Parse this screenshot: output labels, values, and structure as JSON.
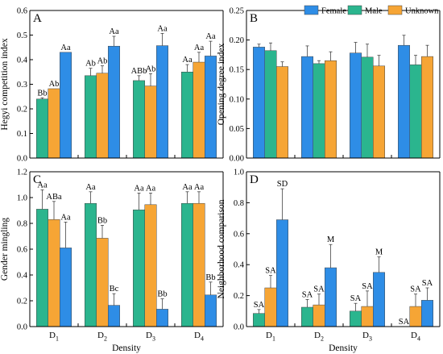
{
  "colors": {
    "Female": "#2e8de6",
    "Male": "#2bb58e",
    "Unknown": "#f6a535"
  },
  "legend": {
    "items": [
      "Female",
      "Male",
      "Unknown"
    ],
    "placement": "top-right"
  },
  "xlabel_shared": "Density",
  "chart_data": [
    {
      "panel": "A",
      "type": "bar",
      "ylabel": "Hegyi competition index",
      "ylim": [
        0.0,
        0.6
      ],
      "yticks": [
        "0.0",
        "0.1",
        "0.2",
        "0.3",
        "0.4",
        "0.5",
        "0.6"
      ],
      "categories": [
        "D1",
        "D2",
        "D3",
        "D4"
      ],
      "xtick_labels": [],
      "series": [
        {
          "name": "Male",
          "values": [
            0.24,
            0.335,
            0.315,
            0.35
          ],
          "errors": [
            0.005,
            0.03,
            0.02,
            0.03
          ],
          "labels": [
            "Bb",
            "Ab",
            "ABb",
            "Aa"
          ]
        },
        {
          "name": "Unknown",
          "values": [
            0.282,
            0.345,
            0.293,
            0.39
          ],
          "errors": [
            0.0,
            0.03,
            0.05,
            0.04
          ],
          "labels": [
            "Ab",
            "Ab",
            "Ab",
            "Aa"
          ]
        },
        {
          "name": "Female",
          "values": [
            0.43,
            0.455,
            0.457,
            0.415
          ],
          "errors": [
            0.0,
            0.04,
            0.05,
            0.06
          ],
          "labels": [
            "Aa",
            "Aa",
            "Aa",
            "Aa"
          ]
        }
      ]
    },
    {
      "panel": "B",
      "type": "bar",
      "ylabel": "Opening degree index",
      "ylim": [
        0.0,
        0.25
      ],
      "yticks": [
        "0.00",
        "0.05",
        "0.10",
        "0.15",
        "0.20",
        "0.25"
      ],
      "categories": [
        "D1",
        "D2",
        "D3",
        "D4"
      ],
      "xtick_labels": [],
      "series": [
        {
          "name": "Female",
          "values": [
            0.188,
            0.172,
            0.178,
            0.191
          ],
          "errors": [
            0.005,
            0.018,
            0.018,
            0.017
          ],
          "labels": [
            "",
            "",
            "",
            ""
          ]
        },
        {
          "name": "Male",
          "values": [
            0.182,
            0.16,
            0.171,
            0.158
          ],
          "errors": [
            0.013,
            0.005,
            0.022,
            0.016
          ],
          "labels": [
            "",
            "",
            "",
            ""
          ]
        },
        {
          "name": "Unknown",
          "values": [
            0.155,
            0.165,
            0.156,
            0.172
          ],
          "errors": [
            0.008,
            0.015,
            0.018,
            0.019
          ],
          "labels": [
            "",
            "",
            "",
            ""
          ]
        }
      ]
    },
    {
      "panel": "C",
      "type": "bar",
      "ylabel": "Gender mingling",
      "ylim": [
        0.0,
        1.2
      ],
      "yticks": [
        "0.0",
        "0.2",
        "0.4",
        "0.6",
        "0.8",
        "1.0",
        "1.2"
      ],
      "categories": [
        "D1",
        "D2",
        "D3",
        "D4"
      ],
      "xtick_labels": [
        "D1",
        "D2",
        "D3",
        "D4"
      ],
      "series": [
        {
          "name": "Male",
          "values": [
            0.91,
            0.955,
            0.905,
            0.955
          ],
          "errors": [
            0.15,
            0.09,
            0.13,
            0.09
          ],
          "labels": [
            "Aa",
            "Aa",
            "Aa",
            "Aa"
          ]
        },
        {
          "name": "Unknown",
          "values": [
            0.83,
            0.685,
            0.945,
            0.955
          ],
          "errors": [
            0.14,
            0.1,
            0.09,
            0.09
          ],
          "labels": [
            "ABa",
            "Bb",
            "Aa",
            "Aa"
          ]
        },
        {
          "name": "Female",
          "values": [
            0.61,
            0.165,
            0.135,
            0.245
          ],
          "errors": [
            0.2,
            0.09,
            0.08,
            0.1
          ],
          "labels": [
            "Aa",
            "Bc",
            "Bb",
            "Bb"
          ]
        }
      ]
    },
    {
      "panel": "D",
      "type": "bar",
      "ylabel": "Neighborhood comparison",
      "ylim": [
        0.0,
        1.0
      ],
      "yticks": [
        "0.0",
        "0.2",
        "0.4",
        "0.6",
        "0.8",
        "1.0"
      ],
      "categories": [
        "D1",
        "D2",
        "D3",
        "D4"
      ],
      "xtick_labels": [
        "D1",
        "D2",
        "D3",
        "D4"
      ],
      "series": [
        {
          "name": "Male",
          "values": [
            0.085,
            0.125,
            0.1,
            0.0
          ],
          "errors": [
            0.025,
            0.05,
            0.05,
            0.0
          ],
          "labels": [
            "SA",
            "SA",
            "SA",
            "SA"
          ]
        },
        {
          "name": "Unknown",
          "values": [
            0.25,
            0.14,
            0.13,
            0.13
          ],
          "errors": [
            0.08,
            0.07,
            0.1,
            0.08
          ],
          "labels": [
            "SA",
            "SA",
            "SA",
            "SA"
          ]
        },
        {
          "name": "Female",
          "values": [
            0.69,
            0.38,
            0.35,
            0.17
          ],
          "errors": [
            0.2,
            0.15,
            0.1,
            0.08
          ],
          "labels": [
            "SD",
            "M",
            "M",
            "SA"
          ]
        }
      ]
    }
  ]
}
